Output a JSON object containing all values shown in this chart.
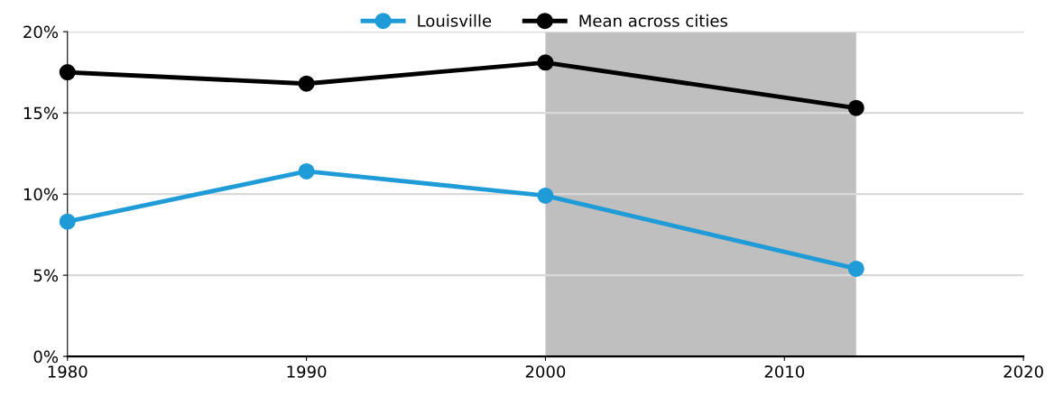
{
  "chart_data": {
    "type": "line",
    "x": [
      1980,
      1990,
      2000,
      2013
    ],
    "series": [
      {
        "name": "Louisville",
        "color": "#1f9bd7",
        "values": [
          8.3,
          11.4,
          9.9,
          5.4
        ]
      },
      {
        "name": "Mean across cities",
        "color": "#000000",
        "values": [
          17.5,
          16.8,
          18.1,
          15.3
        ]
      }
    ],
    "xlim": [
      1980,
      2020
    ],
    "xticks": [
      1980,
      1990,
      2000,
      2010,
      2020
    ],
    "ylim": [
      0,
      20
    ],
    "yticks": [
      {
        "value": 0,
        "label": "0%"
      },
      {
        "value": 5,
        "label": "5%"
      },
      {
        "value": 10,
        "label": "10%"
      },
      {
        "value": 15,
        "label": "15%"
      },
      {
        "value": 20,
        "label": "20%"
      }
    ],
    "bands": [
      {
        "axis": "x",
        "from": 2000,
        "to": 2013,
        "color": "#bfbfbf"
      }
    ],
    "grid": "y",
    "legend": "top",
    "marker": "circle",
    "line_style": "solid"
  }
}
